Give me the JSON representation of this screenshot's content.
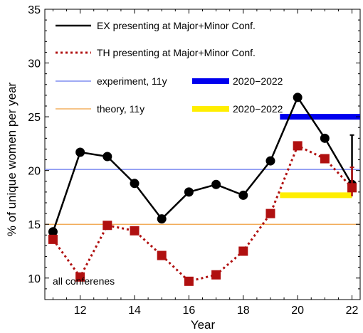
{
  "chart_data": {
    "type": "line",
    "xlabel": "Year",
    "ylabel": "% of unique women per year",
    "xlim": [
      10.7,
      22.3
    ],
    "ylim": [
      8,
      35
    ],
    "x_ticks": [
      12,
      14,
      16,
      18,
      20,
      22
    ],
    "y_ticks": [
      10,
      15,
      20,
      25,
      30,
      35
    ],
    "grid": false,
    "legend_placement": "top-left",
    "annotation": "all conferenes",
    "series": [
      {
        "name": "EX presenting at Major+Minor Conf.",
        "color": "#000000",
        "style": "solid",
        "marker": "circle",
        "x": [
          11,
          12,
          13,
          14,
          15,
          16,
          17,
          18,
          19,
          20,
          21,
          22
        ],
        "y": [
          14.3,
          21.7,
          21.3,
          18.8,
          15.5,
          18.0,
          18.7,
          17.7,
          20.9,
          26.8,
          23.0,
          18.7
        ],
        "error_bar": {
          "x": 22,
          "low": 18.7,
          "high": 23.3
        }
      },
      {
        "name": "TH presenting at Major+Minor Conf.",
        "color": "#b01010",
        "style": "dotted",
        "marker": "square",
        "x": [
          11,
          12,
          13,
          14,
          15,
          16,
          17,
          18,
          19,
          20,
          21,
          22
        ],
        "y": [
          13.6,
          10.1,
          14.9,
          14.4,
          12.1,
          9.7,
          10.3,
          12.5,
          16.0,
          22.3,
          21.1,
          18.4
        ],
        "error_bar": {
          "x": 22,
          "low": 17.6,
          "high": 20.3
        }
      }
    ],
    "reference_lines": [
      {
        "name": "experiment, 11y",
        "y": 20.1,
        "color": "#6677ee"
      },
      {
        "name": "theory, 11y",
        "y": 15.0,
        "color": "#f0a040"
      }
    ],
    "period_bars": [
      {
        "name": "2020−2022",
        "y": 25.0,
        "x_start": 19.35,
        "x_end": 22.3,
        "color": "#0000ee"
      },
      {
        "name": "2020−2022",
        "y": 17.7,
        "x_start": 19.35,
        "x_end": 22.0,
        "color": "#ffee00"
      }
    ]
  }
}
